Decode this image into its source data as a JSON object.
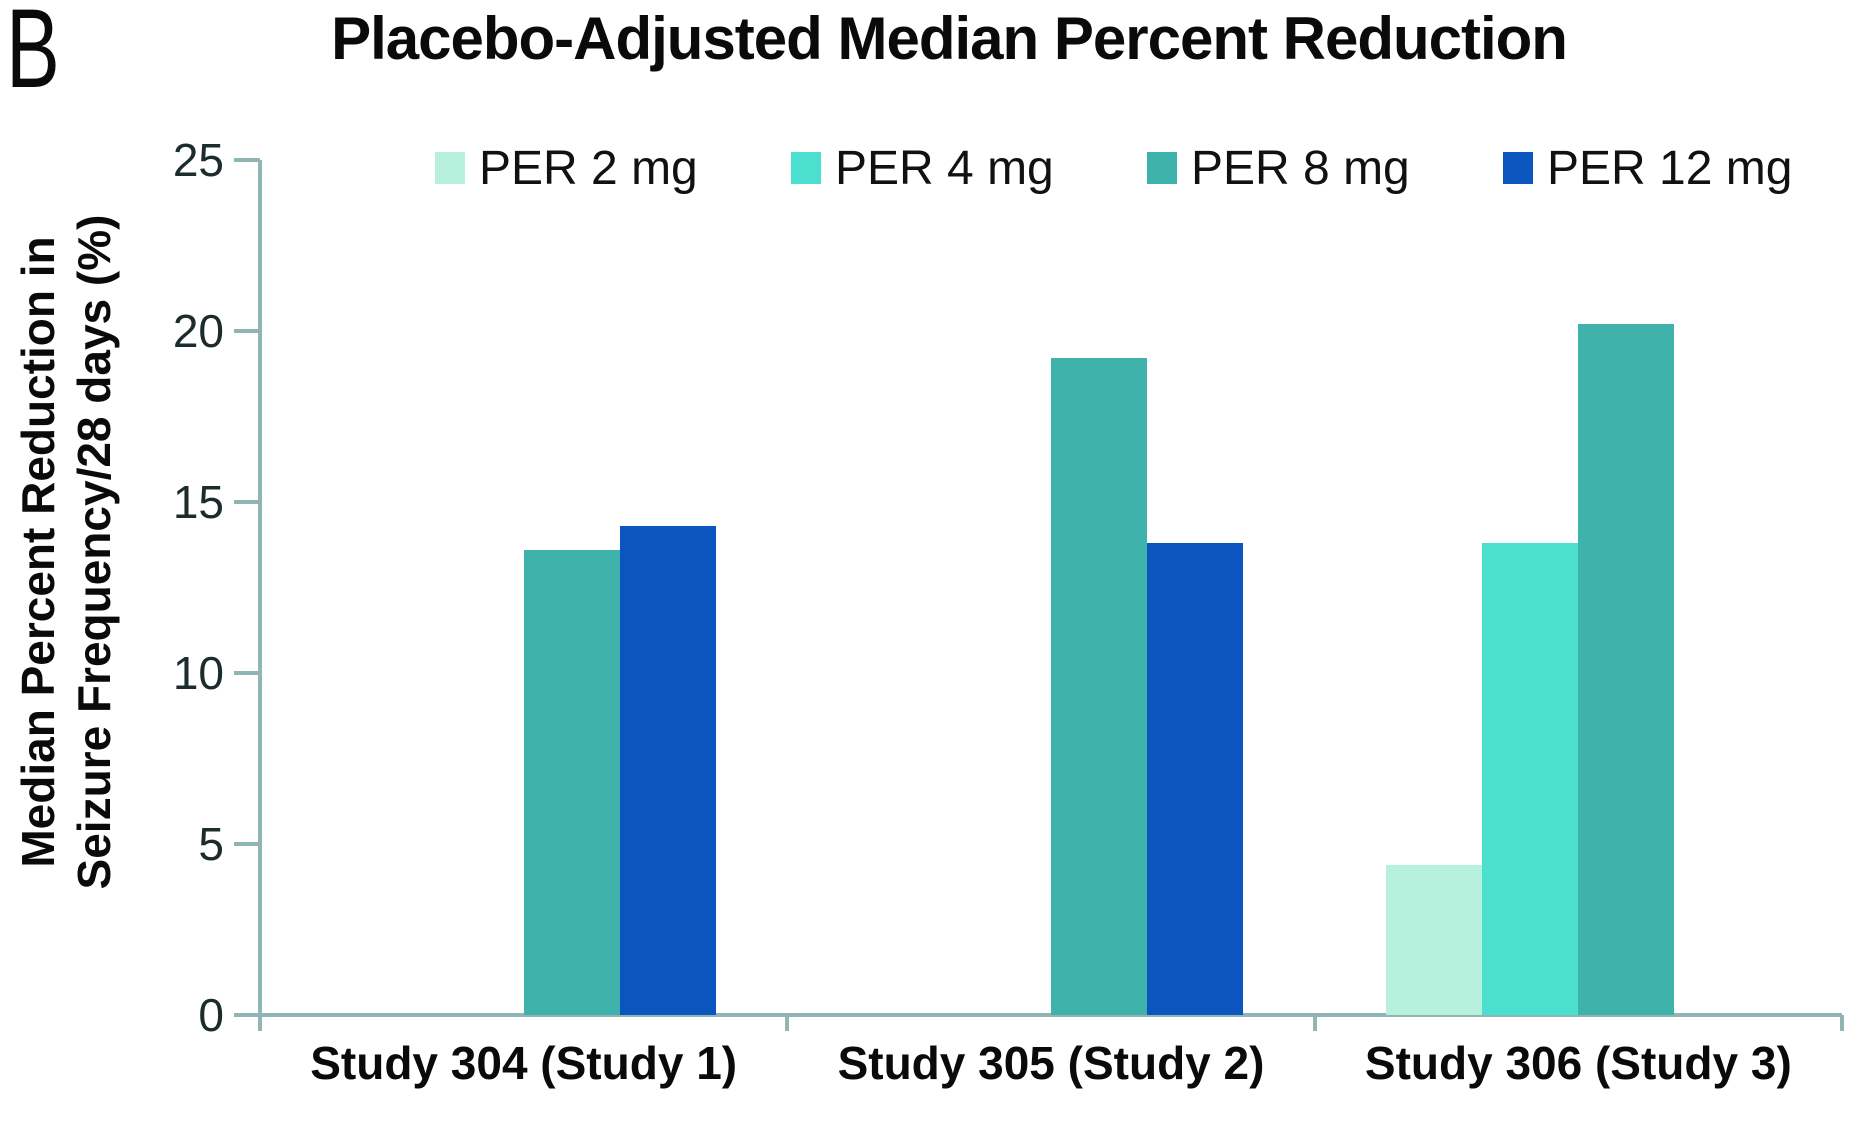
{
  "panel_label": "B",
  "title": "Placebo-Adjusted Median Percent Reduction",
  "chart_data": {
    "type": "bar",
    "title": "Placebo-Adjusted Median Percent Reduction",
    "categories": [
      "Study 304 (Study 1)",
      "Study 305 (Study 2)",
      "Study 306 (Study 3)"
    ],
    "series": [
      {
        "name": "PER 2 mg",
        "color": "#b7f1de",
        "values": [
          null,
          null,
          4.4
        ]
      },
      {
        "name": "PER 4 mg",
        "color": "#4adfce",
        "values": [
          null,
          null,
          13.8
        ]
      },
      {
        "name": "PER 8 mg",
        "color": "#3fb2ac",
        "values": [
          13.6,
          19.2,
          20.2
        ]
      },
      {
        "name": "PER 12 mg",
        "color": "#0a55be",
        "values": [
          14.3,
          13.8,
          null
        ]
      }
    ],
    "xlabel": "",
    "ylabel": "Median Percent Reduction in Seizure Frequency/28 days (%)",
    "ylabel_lines": [
      "Median Percent Reduction in",
      "Seizure Frequency/28 days (%)"
    ],
    "ylim": [
      0,
      25
    ],
    "yticks": [
      0,
      5,
      10,
      15,
      20,
      25
    ],
    "grid": false,
    "legend_position": "top",
    "axis_color": "#8fb5b5"
  }
}
